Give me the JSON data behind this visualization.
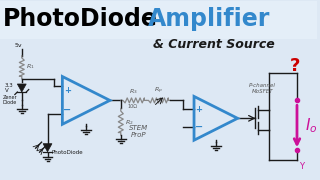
{
  "bg_color": "#dde8f4",
  "title_bg": "#e4eef8",
  "title_black": "PhotoDiode ",
  "title_blue": "Amplifier",
  "subtitle": "& Current Source",
  "blue": "#3388cc",
  "dark": "#1a1a1a",
  "gray": "#888888",
  "lbl": "#555555",
  "pink": "#cc1199",
  "stem": "#555555",
  "title_fs": 17,
  "sub_fs": 9
}
